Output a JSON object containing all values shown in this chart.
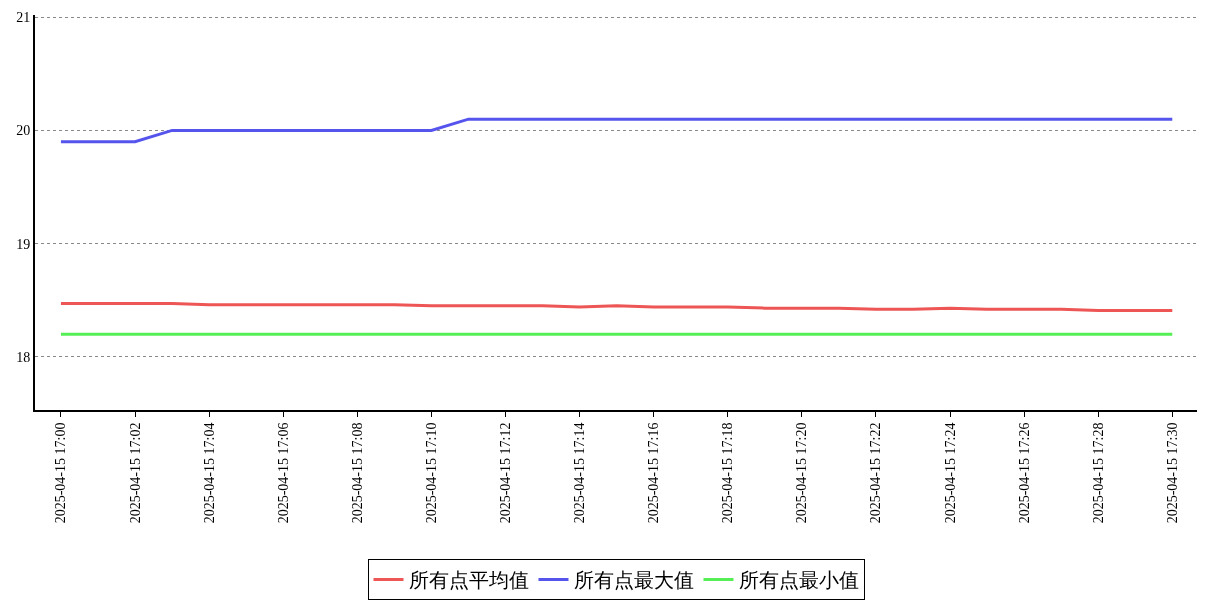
{
  "chart_data": {
    "type": "line",
    "x": [
      "2025-04-15T17:00",
      "2025-04-15T17:01",
      "2025-04-15T17:02",
      "2025-04-15T17:03",
      "2025-04-15T17:04",
      "2025-04-15T17:05",
      "2025-04-15T17:06",
      "2025-04-15T17:07",
      "2025-04-15T17:08",
      "2025-04-15T17:09",
      "2025-04-15T17:10",
      "2025-04-15T17:11",
      "2025-04-15T17:12",
      "2025-04-15T17:13",
      "2025-04-15T17:14",
      "2025-04-15T17:15",
      "2025-04-15T17:16",
      "2025-04-15T17:17",
      "2025-04-15T17:18",
      "2025-04-15T17:19",
      "2025-04-15T17:20",
      "2025-04-15T17:21",
      "2025-04-15T17:22",
      "2025-04-15T17:23",
      "2025-04-15T17:24",
      "2025-04-15T17:25",
      "2025-04-15T17:26",
      "2025-04-15T17:27",
      "2025-04-15T17:28",
      "2025-04-15T17:29",
      "2025-04-15T17:30"
    ],
    "series": [
      {
        "name": "所有点平均值",
        "color": "#ee5555",
        "values": [
          18.47,
          18.47,
          18.47,
          18.47,
          18.46,
          18.46,
          18.46,
          18.46,
          18.46,
          18.46,
          18.45,
          18.45,
          18.45,
          18.45,
          18.44,
          18.45,
          18.44,
          18.44,
          18.44,
          18.43,
          18.43,
          18.43,
          18.42,
          18.42,
          18.43,
          18.42,
          18.42,
          18.42,
          18.41,
          18.41,
          18.41
        ]
      },
      {
        "name": "所有点最大值",
        "color": "#5555ee",
        "values": [
          19.9,
          19.9,
          19.9,
          20.0,
          20.0,
          20.0,
          20.0,
          20.0,
          20.0,
          20.0,
          20.0,
          20.1,
          20.1,
          20.1,
          20.1,
          20.1,
          20.1,
          20.1,
          20.1,
          20.1,
          20.1,
          20.1,
          20.1,
          20.1,
          20.1,
          20.1,
          20.1,
          20.1,
          20.1,
          20.1,
          20.1
        ]
      },
      {
        "name": "所有点最小值",
        "color": "#55ee55",
        "values": [
          18.2,
          18.2,
          18.2,
          18.2,
          18.2,
          18.2,
          18.2,
          18.2,
          18.2,
          18.2,
          18.2,
          18.2,
          18.2,
          18.2,
          18.2,
          18.2,
          18.2,
          18.2,
          18.2,
          18.2,
          18.2,
          18.2,
          18.2,
          18.2,
          18.2,
          18.2,
          18.2,
          18.2,
          18.2,
          18.2,
          18.2
        ]
      }
    ],
    "xlim": [
      "2025-04-15T16:59:18",
      "2025-04-15T17:30:40"
    ],
    "xticks": [
      {
        "value": "2025-04-15T17:00",
        "label": "2025-04-15 17:00"
      },
      {
        "value": "2025-04-15T17:02",
        "label": "2025-04-15 17:02"
      },
      {
        "value": "2025-04-15T17:04",
        "label": "2025-04-15 17:04"
      },
      {
        "value": "2025-04-15T17:06",
        "label": "2025-04-15 17:06"
      },
      {
        "value": "2025-04-15T17:08",
        "label": "2025-04-15 17:08"
      },
      {
        "value": "2025-04-15T17:10",
        "label": "2025-04-15 17:10"
      },
      {
        "value": "2025-04-15T17:12",
        "label": "2025-04-15 17:12"
      },
      {
        "value": "2025-04-15T17:14",
        "label": "2025-04-15 17:14"
      },
      {
        "value": "2025-04-15T17:16",
        "label": "2025-04-15 17:16"
      },
      {
        "value": "2025-04-15T17:18",
        "label": "2025-04-15 17:18"
      },
      {
        "value": "2025-04-15T17:20",
        "label": "2025-04-15 17:20"
      },
      {
        "value": "2025-04-15T17:22",
        "label": "2025-04-15 17:22"
      },
      {
        "value": "2025-04-15T17:24",
        "label": "2025-04-15 17:24"
      },
      {
        "value": "2025-04-15T17:26",
        "label": "2025-04-15 17:26"
      },
      {
        "value": "2025-04-15T17:28",
        "label": "2025-04-15 17:28"
      },
      {
        "value": "2025-04-15T17:30",
        "label": "2025-04-15 17:30"
      }
    ],
    "ylim": [
      17.53,
      21.02
    ],
    "yticks": [
      18,
      19,
      20,
      21
    ],
    "grid": "y",
    "legend": "bottom",
    "marker": "none",
    "line_style": "solid"
  }
}
